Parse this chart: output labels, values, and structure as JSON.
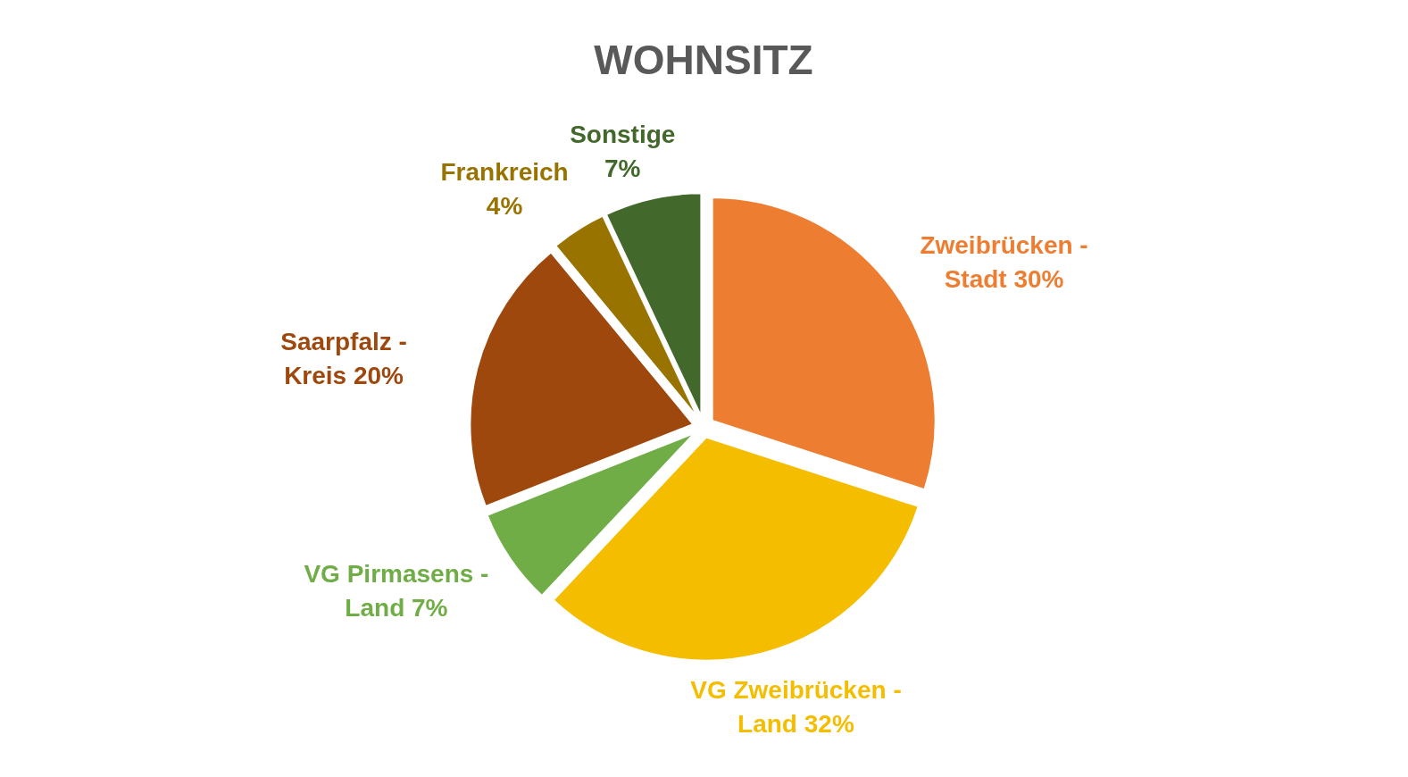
{
  "chart_data": {
    "type": "pie",
    "title": "WOHNSITZ",
    "categories": [
      "Zweibrücken - Stadt",
      "VG Zweibrücken - Land",
      "VG Pirmasens - Land",
      "Saarpfalz - Kreis",
      "Frankreich",
      "Sonstige"
    ],
    "values": [
      30,
      32,
      7,
      20,
      4,
      7
    ],
    "value_labels": [
      "30%",
      "32%",
      "7%",
      "20%",
      "4%",
      "7%"
    ],
    "colors": [
      "#ed7d31",
      "#f5bd00",
      "#70ad47",
      "#9e480e",
      "#997300",
      "#43682b"
    ]
  }
}
